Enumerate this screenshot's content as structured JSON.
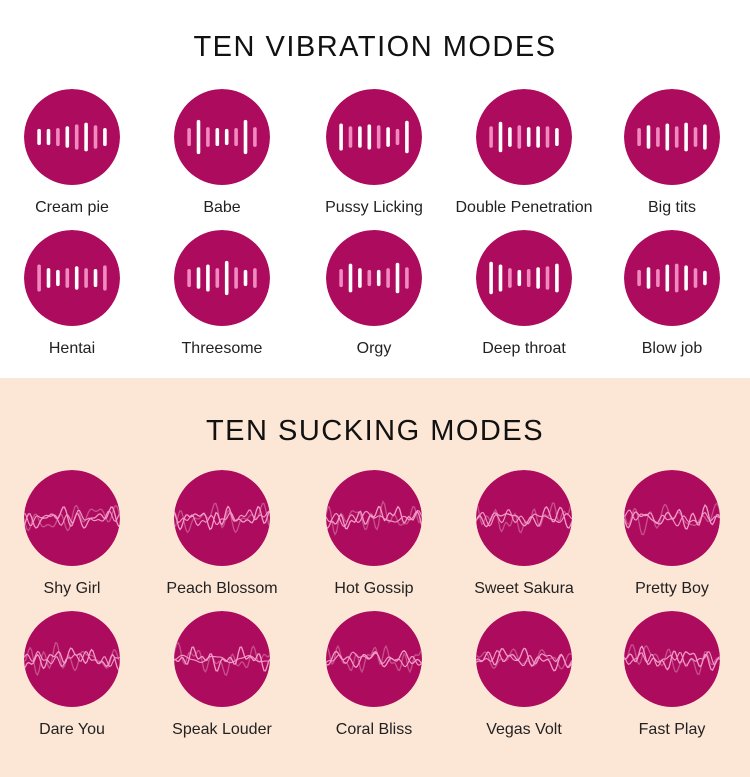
{
  "colors": {
    "circle": "#ad0c5e",
    "bar_bright": "#ffffff",
    "bar_soft": "#f08ac0",
    "wave_light": "#f29bc8",
    "wave_dim": "#c7508c",
    "sucking_bg": "#fce6d5"
  },
  "vibration": {
    "title": "TEN VIBRATION MODES",
    "modes": [
      {
        "label": "Cream pie",
        "icon": "vibration-bars-icon"
      },
      {
        "label": "Babe",
        "icon": "vibration-bars-icon"
      },
      {
        "label": "Pussy Licking",
        "icon": "vibration-bars-icon"
      },
      {
        "label": "Double Penetration",
        "icon": "vibration-bars-icon"
      },
      {
        "label": "Big tits",
        "icon": "vibration-bars-icon"
      },
      {
        "label": "Hentai",
        "icon": "vibration-bars-icon"
      },
      {
        "label": "Threesome",
        "icon": "vibration-bars-icon"
      },
      {
        "label": "Orgy",
        "icon": "vibration-bars-icon"
      },
      {
        "label": "Deep throat",
        "icon": "vibration-bars-icon"
      },
      {
        "label": "Blow job",
        "icon": "vibration-bars-icon"
      }
    ]
  },
  "sucking": {
    "title": "TEN SUCKING MODES",
    "modes": [
      {
        "label": "Shy Girl",
        "icon": "sucking-wave-icon"
      },
      {
        "label": "Peach Blossom",
        "icon": "sucking-wave-icon"
      },
      {
        "label": "Hot Gossip",
        "icon": "sucking-wave-icon"
      },
      {
        "label": "Sweet Sakura",
        "icon": "sucking-wave-icon"
      },
      {
        "label": "Pretty Boy",
        "icon": "sucking-wave-icon"
      },
      {
        "label": "Dare You",
        "icon": "sucking-wave-icon"
      },
      {
        "label": "Speak Louder",
        "icon": "sucking-wave-icon"
      },
      {
        "label": "Coral Bliss",
        "icon": "sucking-wave-icon"
      },
      {
        "label": "Vegas Volt",
        "icon": "sucking-wave-icon"
      },
      {
        "label": "Fast Play",
        "icon": "sucking-wave-icon"
      }
    ]
  }
}
